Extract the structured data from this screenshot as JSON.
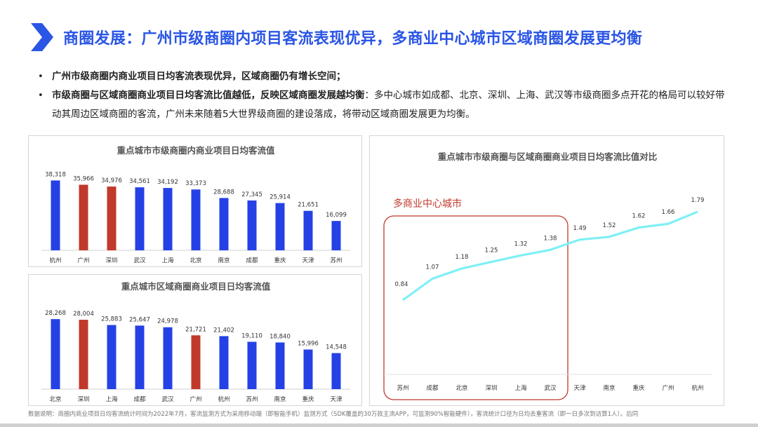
{
  "header": {
    "title": "商圈发展：广州市级商圈内项目客流表现优异，多商业中心城市区域商圈发展更均衡"
  },
  "bullets": [
    {
      "bold": "广州市级商圈内商业项目日均客流表现优异，区域商圈仍有增长空间；",
      "text": ""
    },
    {
      "bold": "市级商圈与区域商圈商业项目日均客流比值越低，反映区域商圈发展越均衡",
      "text": "：多中心城市如成都、北京、深圳、上海、武汉等市级商圈多点开花的格局可以较好带动其周边区域商圈的客流，广州未来随着5大世界级商圈的建设落成，将带动区域商圈发展更为均衡。"
    }
  ],
  "colors": {
    "blue": "#2541e6",
    "red": "#c0392b",
    "cyan": "#7ef0f5",
    "highlight_box": "#c0392b",
    "title_blue": "#2a55e5"
  },
  "chart_data": [
    {
      "type": "bar",
      "title": "重点城市市级商圈内商业项目日均客流值",
      "categories": [
        "杭州",
        "广州",
        "深圳",
        "武汉",
        "上海",
        "北京",
        "南京",
        "成都",
        "重庆",
        "天津",
        "苏州"
      ],
      "values": [
        38318,
        35966,
        34976,
        34561,
        34192,
        33373,
        28688,
        27345,
        25914,
        21651,
        16099
      ],
      "value_labels": [
        "38,318",
        "35,966",
        "34,976",
        "34,561",
        "34,192",
        "33,373",
        "28,688",
        "27,345",
        "25,914",
        "21,651",
        "16,099"
      ],
      "bar_colors": [
        "blue",
        "red",
        "red",
        "blue",
        "blue",
        "blue",
        "blue",
        "blue",
        "blue",
        "blue",
        "blue"
      ],
      "ylim": [
        0,
        40000
      ],
      "grid": false,
      "legend": "none"
    },
    {
      "type": "bar",
      "title": "重点城市区域商圈商业项目日均客流值",
      "categories": [
        "北京",
        "深圳",
        "上海",
        "成都",
        "武汉",
        "广州",
        "杭州",
        "苏州",
        "南京",
        "重庆",
        "天津"
      ],
      "values": [
        28268,
        28004,
        25883,
        25647,
        24978,
        21721,
        21402,
        19110,
        18840,
        15996,
        14548
      ],
      "value_labels": [
        "28,268",
        "28,004",
        "25,883",
        "25,647",
        "24,978",
        "21,721",
        "21,402",
        "19,110",
        "18,840",
        "15,996",
        "14,548"
      ],
      "bar_colors": [
        "blue",
        "red",
        "blue",
        "blue",
        "blue",
        "red",
        "blue",
        "blue",
        "blue",
        "blue",
        "blue"
      ],
      "ylim": [
        0,
        30000
      ],
      "grid": false,
      "legend": "none"
    },
    {
      "type": "line",
      "title": "重点城市市级商圈与区域商圈商业项目日均客流比值对比",
      "categories": [
        "苏州",
        "成都",
        "北京",
        "深圳",
        "上海",
        "武汉",
        "天津",
        "南京",
        "重庆",
        "广州",
        "杭州"
      ],
      "values": [
        0.84,
        1.07,
        1.18,
        1.25,
        1.32,
        1.38,
        1.49,
        1.52,
        1.62,
        1.66,
        1.79
      ],
      "value_labels": [
        "0.84",
        "1.07",
        "1.18",
        "1.25",
        "1.32",
        "1.38",
        "1.49",
        "1.52",
        "1.62",
        "1.66",
        "1.79"
      ],
      "ylim": [
        0.5,
        2.0
      ],
      "grid": false,
      "legend": "none",
      "annotation": {
        "label": "多商业中心城市",
        "covers_categories": [
          "苏州",
          "成都",
          "北京",
          "深圳",
          "上海",
          "武汉"
        ]
      }
    }
  ],
  "footnote": "数据说明：商圈内商业项目日均客流统计时间为2022年7月，客流监测方式为采用移动端（即智能手机）监测方式（SDK覆盖的30万款主流APP，可监测90%智能硬件），客流统计口径为日均去重客流（即一日多次到访算1人）。后同"
}
